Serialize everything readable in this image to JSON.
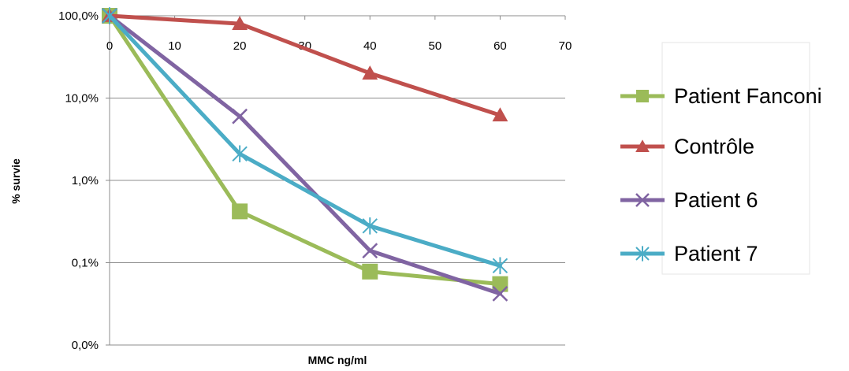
{
  "chart_data": {
    "type": "line",
    "title": "",
    "xlabel": "MMC ng/ml",
    "ylabel": "% survie",
    "xlim": [
      0,
      70
    ],
    "x_ticks": [
      "0",
      "10",
      "20",
      "30",
      "40",
      "50",
      "60",
      "70"
    ],
    "y_scale": "log",
    "y_ticks": [
      "100,0%",
      "10,0%",
      "1,0%",
      "0,1%",
      "0,0%"
    ],
    "grid": "horizontal",
    "legend_position": "right",
    "x": [
      0,
      20,
      40,
      60
    ],
    "series": [
      {
        "name": "Patient Fanconi",
        "values": [
          1.0,
          0.0042,
          0.00078,
          0.00055
        ],
        "color": "#9bbb59",
        "marker": "square"
      },
      {
        "name": "Contrôle",
        "values": [
          1.0,
          0.8,
          0.2,
          0.062
        ],
        "color": "#c0504d",
        "marker": "triangle"
      },
      {
        "name": "Patient 6",
        "values": [
          1.0,
          0.06,
          0.0014,
          0.00042
        ],
        "color": "#8064a2",
        "marker": "x"
      },
      {
        "name": "Patient 7",
        "values": [
          1.0,
          0.021,
          0.0028,
          0.00092
        ],
        "color": "#4bacc6",
        "marker": "star"
      }
    ]
  }
}
